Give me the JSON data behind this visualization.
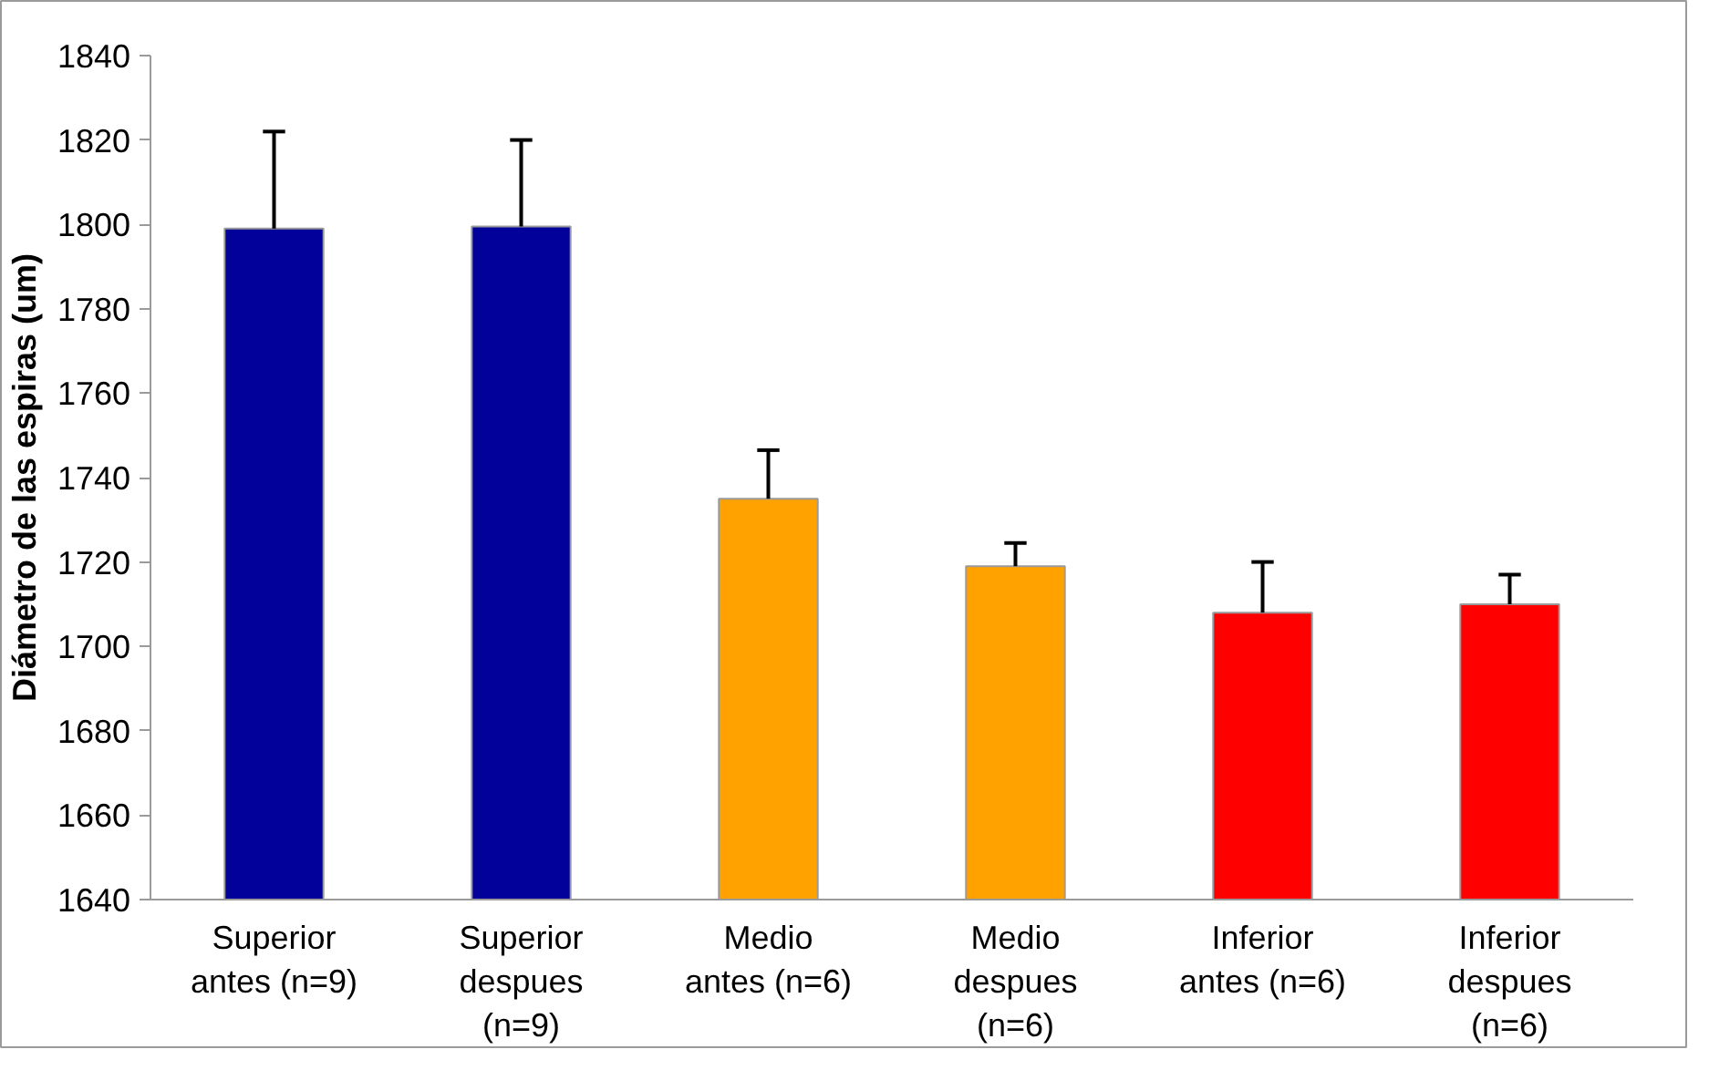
{
  "chart_data": {
    "type": "bar",
    "ylabel": "Diámetro de las espiras (um)",
    "categories": [
      "Superior antes (n=9)",
      "Superior despues (n=9)",
      "Medio antes (n=6)",
      "Medio despues (n=6)",
      "Inferior antes (n=6)",
      "Inferior despues (n=6)"
    ],
    "values": [
      1799,
      1799.5,
      1735,
      1719,
      1708,
      1710
    ],
    "colors": [
      "#02029a",
      "#02029a",
      "#ffa200",
      "#ffa200",
      "#ff0000",
      "#ff0000"
    ],
    "errors": [
      [
        1799,
        1822
      ],
      [
        1799.5,
        1820
      ],
      [
        1735,
        1746.5
      ],
      [
        1719,
        1724.5
      ],
      [
        1708,
        1720
      ],
      [
        1710,
        1717
      ]
    ],
    "ylim": [
      1640,
      1840
    ],
    "yticks": [
      1640,
      1660,
      1680,
      1700,
      1720,
      1740,
      1760,
      1780,
      1800,
      1820,
      1840
    ],
    "grid": false
  }
}
